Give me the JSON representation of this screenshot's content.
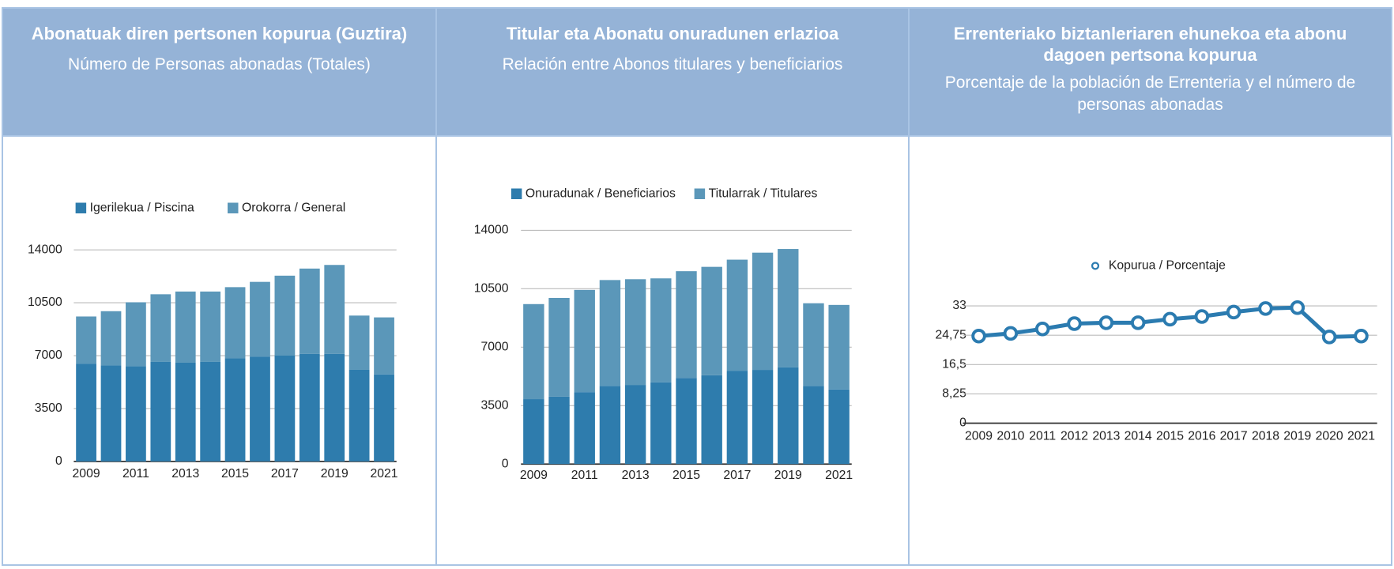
{
  "chart_data": [
    {
      "type": "bar",
      "stacked": true,
      "title": "Abonatuak diren pertsonen kopurua (Guztira)",
      "subtitle": "Número de Personas abonadas (Totales)",
      "categories": [
        "2009",
        null,
        "2011",
        null,
        "2013",
        null,
        "2015",
        null,
        "2017",
        null,
        "2019",
        null,
        "2021"
      ],
      "series": [
        {
          "name": "Igerilekua / Piscina",
          "color": "#2e7cad",
          "values": [
            6470,
            6350,
            6300,
            6600,
            6530,
            6600,
            6820,
            6940,
            7000,
            7120,
            7120,
            6060,
            5760
          ]
        },
        {
          "name": "Orokorra / General",
          "color": "#5b97b9",
          "values": [
            3120,
            3590,
            4230,
            4460,
            4710,
            4640,
            4710,
            4940,
            5290,
            5640,
            5880,
            3590,
            3770
          ]
        }
      ],
      "ylim": [
        0,
        14000
      ],
      "yticks": [
        0,
        3500,
        7000,
        10500,
        14000
      ],
      "grid": true,
      "legend": "top"
    },
    {
      "type": "bar",
      "stacked": true,
      "title": "Titular eta Abonatu onuradunen erlazioa",
      "subtitle": "Relación entre Abonos titulares y beneficiarios",
      "categories": [
        "2009",
        null,
        "2011",
        null,
        "2013",
        null,
        "2015",
        null,
        "2017",
        null,
        "2019",
        null,
        "2021"
      ],
      "series": [
        {
          "name": "Onuradunak / Beneficiarios",
          "color": "#2e7cad",
          "values": [
            3890,
            4040,
            4310,
            4680,
            4740,
            4900,
            5160,
            5320,
            5590,
            5640,
            5800,
            4680,
            4470
          ]
        },
        {
          "name": "Titularrak / Titulares",
          "color": "#5b97b9",
          "values": [
            5690,
            5910,
            6120,
            6340,
            6330,
            6220,
            6390,
            6490,
            6650,
            7020,
            7080,
            4950,
            5060
          ]
        }
      ],
      "ylim": [
        0,
        14000
      ],
      "yticks": [
        0,
        3500,
        7000,
        10500,
        14000
      ],
      "grid": true,
      "legend": "top"
    },
    {
      "type": "line",
      "title": "Errenteriako biztanleriaren ehunekoa eta abonu dagoen pertsona kopurua",
      "subtitle": "Porcentaje de la población de Errenteria y el número de personas abonadas",
      "categories": [
        "2009",
        "2010",
        "2011",
        "2012",
        "2013",
        "2014",
        "2015",
        "2016",
        "2017",
        "2018",
        "2019",
        "2020",
        "2021"
      ],
      "series": [
        {
          "name": "Kopurua / Porcentaje",
          "color": "#2b7bb0",
          "values": [
            24.5,
            25.25,
            26.5,
            28,
            28.25,
            28.25,
            29.25,
            30,
            31.25,
            32.25,
            32.5,
            24.25,
            24.5
          ]
        }
      ],
      "ylim": [
        0,
        33
      ],
      "yticks": [
        0,
        {
          "value": 8.25,
          "label": "8,25"
        },
        {
          "value": 16.5,
          "label": "16,5"
        },
        {
          "value": 24.75,
          "label": "24,75"
        },
        33
      ],
      "grid": true,
      "legend": "top"
    }
  ]
}
